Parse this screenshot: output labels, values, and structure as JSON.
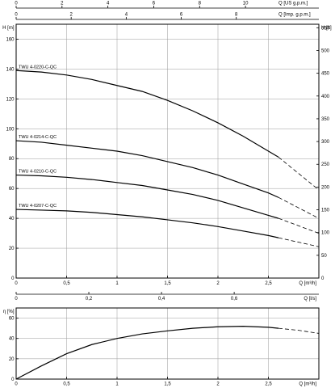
{
  "chart_data": [
    {
      "type": "line",
      "x_unit": "Q [m³/h]",
      "ylabel_left": "H [m]",
      "ylabel_right": "H [ft]",
      "top_axis_1_label": "Q [US g.p.m.]",
      "top_axis_2_label": "Q [Imp. g.p.m.]",
      "bottom_axis_2_label": "Q [l/s]",
      "xlim": [
        0,
        3
      ],
      "ylim": [
        0,
        170
      ],
      "ylim_right_ft": [
        0,
        557.7
      ],
      "x_ticks": [
        0,
        0.5,
        1,
        1.5,
        2,
        2.5
      ],
      "x_tick_labels": [
        "0",
        "0,5",
        "1",
        "1,5",
        "2",
        "2,5"
      ],
      "y_ticks": [
        0,
        20,
        40,
        60,
        80,
        100,
        120,
        140,
        160
      ],
      "right_ticks": [
        0,
        50,
        100,
        150,
        200,
        250,
        300,
        350,
        400,
        450,
        500,
        550
      ],
      "top_us_ticks": [
        0,
        2,
        4,
        6,
        8,
        10
      ],
      "top_us_max": 13.2,
      "top_imp_ticks": [
        0,
        2,
        4,
        6,
        8
      ],
      "top_imp_max": 11,
      "bottom_ls_ticks": [
        0,
        0.2,
        0.4,
        0.6
      ],
      "bottom_ls_tick_labels": [
        "0",
        "0,2",
        "0,4",
        "0,6"
      ],
      "bottom_ls_max": 0.833,
      "grid": true,
      "series": [
        {
          "name": "TWU 4-0220-C-QC",
          "x": [
            0,
            0.25,
            0.5,
            0.75,
            1,
            1.25,
            1.5,
            1.75,
            2,
            2.25,
            2.5,
            2.6
          ],
          "y": [
            139,
            138,
            136,
            133,
            129,
            125,
            119,
            112,
            104,
            95,
            85,
            81
          ],
          "dashed_x": [
            2.6,
            2.8,
            3.0
          ],
          "dashed_y": [
            81,
            70,
            59
          ]
        },
        {
          "name": "TWU 4-0214-C-QC",
          "x": [
            0,
            0.25,
            0.5,
            0.75,
            1,
            1.25,
            1.5,
            1.75,
            2,
            2.25,
            2.5,
            2.6
          ],
          "y": [
            92,
            91,
            89,
            87,
            85,
            82,
            78,
            74,
            69,
            63,
            57,
            54
          ],
          "dashed_x": [
            2.6,
            2.8,
            3.0
          ],
          "dashed_y": [
            54,
            47,
            40
          ]
        },
        {
          "name": "TWU 4-0210-C-QC",
          "x": [
            0,
            0.25,
            0.5,
            0.75,
            1,
            1.25,
            1.5,
            1.75,
            2,
            2.25,
            2.5,
            2.6
          ],
          "y": [
            69,
            68.5,
            67.5,
            66,
            64,
            62,
            59,
            56,
            52,
            47,
            42,
            40
          ],
          "dashed_x": [
            2.6,
            2.8,
            3.0
          ],
          "dashed_y": [
            40,
            35,
            30
          ]
        },
        {
          "name": "TWU 4-0207-C-QC",
          "x": [
            0,
            0.25,
            0.5,
            0.75,
            1,
            1.25,
            1.5,
            1.75,
            2,
            2.25,
            2.5,
            2.6
          ],
          "y": [
            46,
            45.5,
            45,
            44,
            42.5,
            41,
            39,
            37,
            34.5,
            31.5,
            28.5,
            27
          ],
          "dashed_x": [
            2.6,
            2.8,
            3.0
          ],
          "dashed_y": [
            27,
            24,
            21
          ]
        }
      ]
    },
    {
      "type": "line",
      "x_unit": "Q [m³/h]",
      "ylabel_left": "η [%]",
      "xlim": [
        0,
        3
      ],
      "ylim": [
        0,
        70
      ],
      "x_ticks": [
        0,
        0.5,
        1,
        1.5,
        2,
        2.5
      ],
      "x_tick_labels": [
        "0",
        "0,5",
        "1",
        "1,5",
        "2",
        "2,5"
      ],
      "y_ticks": [
        0,
        20,
        40,
        60
      ],
      "grid": true,
      "series": [
        {
          "x": [
            0,
            0.25,
            0.5,
            0.75,
            1,
            1.25,
            1.5,
            1.75,
            2,
            2.25,
            2.5,
            2.6
          ],
          "y": [
            0,
            13,
            25,
            34,
            40,
            44.5,
            47.5,
            50,
            51.5,
            52,
            51,
            50
          ],
          "dashed_x": [
            2.6,
            2.8,
            3.0
          ],
          "dashed_y": [
            50,
            48,
            45
          ]
        }
      ]
    }
  ]
}
